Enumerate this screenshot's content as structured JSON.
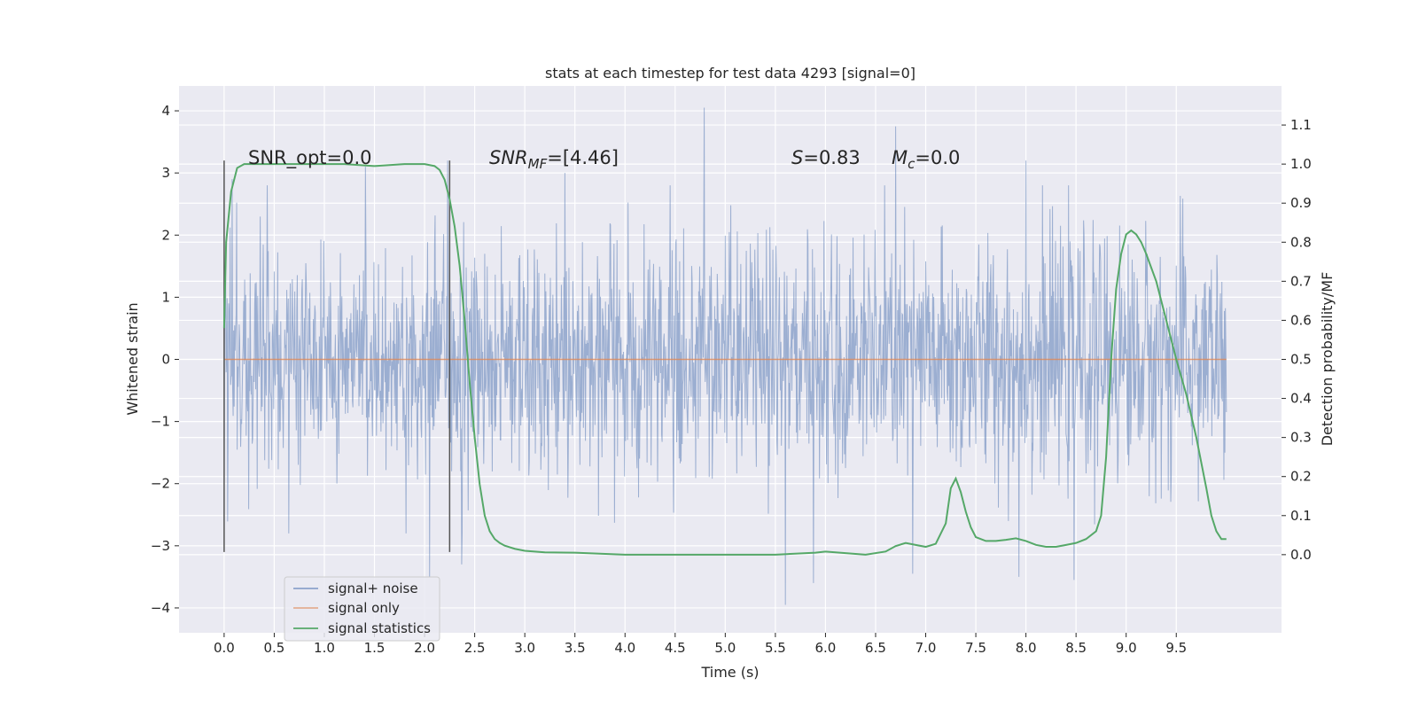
{
  "chart_data": {
    "type": "line",
    "title": "stats at each timestep for test data 4293 [signal=0]",
    "xlabel": "Time (s)",
    "ylabel": "Whitened strain",
    "ylabel_right": "Detection probability/MF",
    "xlim": [
      -0.45,
      10.55
    ],
    "ylim": [
      -4.4,
      4.4
    ],
    "ylim_right": [
      -0.2,
      1.2
    ],
    "x_ticks": [
      "0.0",
      "0.5",
      "1.0",
      "1.5",
      "2.0",
      "2.5",
      "3.0",
      "3.5",
      "4.0",
      "4.5",
      "5.0",
      "5.5",
      "6.0",
      "6.5",
      "7.0",
      "7.5",
      "8.0",
      "8.5",
      "9.0",
      "9.5"
    ],
    "y_ticks": [
      "4",
      "3",
      "2",
      "1",
      "0",
      "−1",
      "−2",
      "−3",
      "−4"
    ],
    "y_ticks_right": [
      "1.1",
      "1.0",
      "0.9",
      "0.8",
      "0.7",
      "0.6",
      "0.5",
      "0.4",
      "0.3",
      "0.2",
      "0.1",
      "0.0"
    ],
    "grid": true,
    "legend_position": "lower-left",
    "annotations": {
      "snr_opt": "SNR_opt=0.0",
      "snr_mf_sym": "SNR",
      "snr_mf_sub": "MF",
      "snr_mf_val": "=[4.46]",
      "s_sym": "S",
      "s_val": "=0.83",
      "mc_sym": "M",
      "mc_sub": "c",
      "mc_val": "=0.0"
    },
    "vlines": {
      "x": [
        0.0,
        2.25
      ],
      "y_range": [
        -3.1,
        3.2
      ]
    },
    "series": [
      {
        "name": "signal+ noise",
        "color": "#4c72b0",
        "style": "dense noise, std ~1, t 0 to 10 s",
        "x_range": [
          0.0,
          10.0
        ],
        "peak_spikes": [
          {
            "x": 0.08,
            "y": 2.9
          },
          {
            "x": 1.41,
            "y": 3.1
          },
          {
            "x": 2.05,
            "y": -3.5
          },
          {
            "x": 2.23,
            "y": 3.2
          },
          {
            "x": 2.37,
            "y": -3.3
          },
          {
            "x": 3.4,
            "y": 3.0
          },
          {
            "x": 4.79,
            "y": 4.05
          },
          {
            "x": 5.6,
            "y": -3.95
          },
          {
            "x": 5.88,
            "y": -3.6
          },
          {
            "x": 6.7,
            "y": 3.75
          },
          {
            "x": 6.87,
            "y": -3.45
          },
          {
            "x": 7.93,
            "y": -3.5
          },
          {
            "x": 8.0,
            "y": 3.2
          },
          {
            "x": 8.48,
            "y": -3.55
          }
        ]
      },
      {
        "name": "signal only",
        "color": "#dd8452",
        "x": [
          0.0,
          10.0
        ],
        "y": [
          0.0,
          0.0
        ]
      },
      {
        "name": "signal statistics",
        "color": "#55a868",
        "axis": "right",
        "x": [
          0.0,
          0.02,
          0.07,
          0.13,
          0.2,
          0.4,
          0.8,
          1.2,
          1.5,
          1.8,
          2.0,
          2.1,
          2.15,
          2.2,
          2.25,
          2.3,
          2.35,
          2.4,
          2.45,
          2.5,
          2.55,
          2.6,
          2.65,
          2.7,
          2.75,
          2.8,
          2.9,
          3.0,
          3.2,
          3.5,
          4.0,
          4.5,
          5.0,
          5.5,
          5.9,
          6.0,
          6.2,
          6.4,
          6.6,
          6.7,
          6.8,
          6.9,
          7.0,
          7.1,
          7.2,
          7.25,
          7.3,
          7.35,
          7.4,
          7.45,
          7.5,
          7.6,
          7.7,
          7.8,
          7.9,
          8.0,
          8.1,
          8.2,
          8.3,
          8.4,
          8.5,
          8.6,
          8.7,
          8.75,
          8.8,
          8.85,
          8.9,
          8.95,
          9.0,
          9.05,
          9.1,
          9.15,
          9.2,
          9.3,
          9.4,
          9.5,
          9.6,
          9.7,
          9.8,
          9.85,
          9.9,
          9.95,
          10.0
        ],
        "y": [
          0.58,
          0.8,
          0.93,
          0.99,
          1.0,
          1.0,
          1.0,
          1.0,
          0.995,
          1.0,
          1.0,
          0.995,
          0.985,
          0.96,
          0.91,
          0.84,
          0.74,
          0.6,
          0.44,
          0.3,
          0.18,
          0.1,
          0.06,
          0.04,
          0.03,
          0.023,
          0.015,
          0.01,
          0.006,
          0.005,
          0.0,
          0.0,
          0.0,
          0.0,
          0.005,
          0.008,
          0.004,
          0.0,
          0.008,
          0.022,
          0.03,
          0.025,
          0.02,
          0.028,
          0.08,
          0.17,
          0.195,
          0.16,
          0.11,
          0.07,
          0.045,
          0.035,
          0.035,
          0.038,
          0.042,
          0.035,
          0.025,
          0.02,
          0.02,
          0.025,
          0.03,
          0.04,
          0.06,
          0.1,
          0.25,
          0.5,
          0.68,
          0.77,
          0.82,
          0.83,
          0.82,
          0.8,
          0.77,
          0.7,
          0.6,
          0.5,
          0.41,
          0.3,
          0.17,
          0.1,
          0.06,
          0.04,
          0.04
        ]
      }
    ]
  }
}
